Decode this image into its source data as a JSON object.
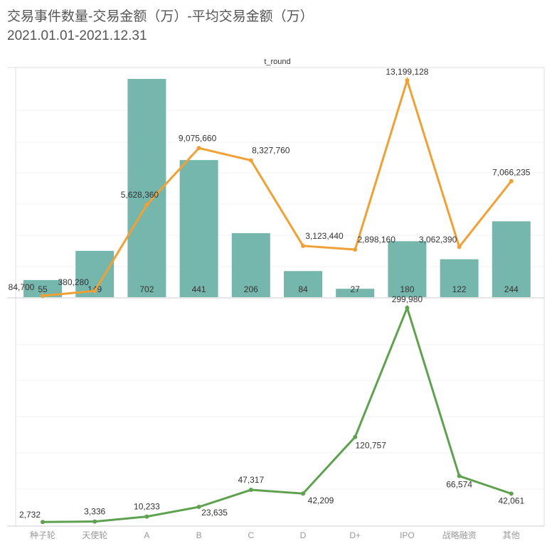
{
  "title": "交易事件数量-交易金额（万）-平均交易金额（万）",
  "subtitle": "2021.01.01-2021.12.31",
  "chart_data": {
    "type": "bar+line",
    "xlabel": "t_round",
    "categories": [
      "种子轮",
      "天使轮",
      "A",
      "B",
      "C",
      "D",
      "D+",
      "IPO",
      "战略融资",
      "其他"
    ],
    "series": [
      {
        "name": "交易事件数量",
        "type": "bar",
        "color": "#76b7ad",
        "values": [
          55,
          149,
          702,
          441,
          206,
          84,
          27,
          180,
          122,
          244
        ],
        "ylim": [
          0,
          740
        ]
      },
      {
        "name": "交易金额（万）",
        "type": "line",
        "color": "#f0a035",
        "values": [
          84700,
          380280,
          5628360,
          9075660,
          8327760,
          3123440,
          2898160,
          13199128,
          3062390,
          7066235
        ],
        "ylim": [
          0,
          13900000
        ]
      },
      {
        "name": "平均交易金额（万）",
        "type": "line",
        "color": "#5ea14e",
        "values": [
          2732,
          3336,
          10233,
          23635,
          47317,
          42209,
          120757,
          299980,
          66574,
          42061
        ],
        "ylim": [
          0,
          310000
        ]
      }
    ],
    "labels": {
      "amount": [
        "84,700",
        "380,280",
        "5,628,360",
        "9,075,660",
        "8,327,760",
        "3,123,440",
        "2,898,160",
        "13,199,128",
        "3,062,390",
        "7,066,235"
      ],
      "avg": [
        "2,732",
        "3,336",
        "10,233",
        "23,635",
        "47,317",
        "42,209",
        "120,757",
        "299,980",
        "66,574",
        "42,061"
      ]
    }
  }
}
